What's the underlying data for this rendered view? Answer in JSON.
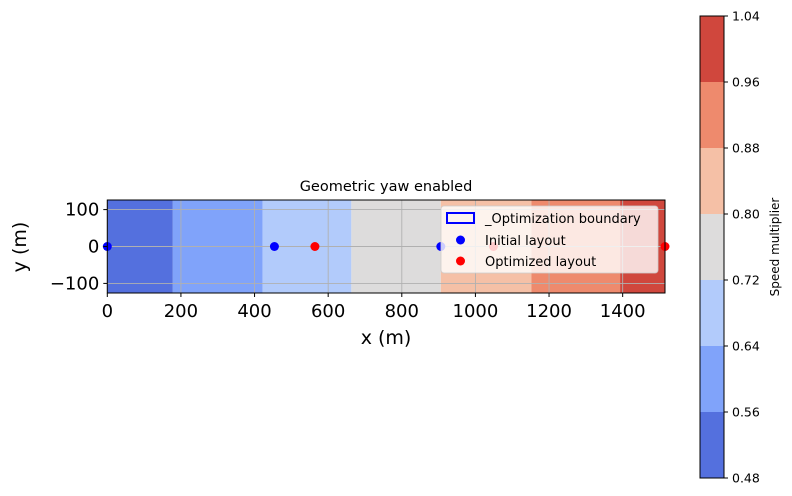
{
  "chart_data": {
    "type": "heatmap",
    "title": "Geometric yaw enabled",
    "xlabel": "x (m)",
    "ylabel": "y (m)",
    "xlim": [
      0,
      1515
    ],
    "ylim": [
      -126,
      126
    ],
    "xticks": [
      0,
      200,
      400,
      600,
      800,
      1000,
      1200,
      1400
    ],
    "yticks": [
      -100,
      0,
      100
    ],
    "ytick_labels": [
      "−100",
      "0",
      "100"
    ],
    "grid": true,
    "contour_bands": [
      {
        "x_start": 0,
        "x_end": 178,
        "level_low": 0.48,
        "level_high": 0.56
      },
      {
        "x_start": 178,
        "x_end": 422,
        "level_low": 0.56,
        "level_high": 0.64
      },
      {
        "x_start": 422,
        "x_end": 663,
        "level_low": 0.64,
        "level_high": 0.72
      },
      {
        "x_start": 663,
        "x_end": 906,
        "level_low": 0.72,
        "level_high": 0.8
      },
      {
        "x_start": 906,
        "x_end": 1152,
        "level_low": 0.8,
        "level_high": 0.88
      },
      {
        "x_start": 1152,
        "x_end": 1393,
        "level_low": 0.88,
        "level_high": 0.96
      },
      {
        "x_start": 1393,
        "x_end": 1515,
        "level_low": 0.96,
        "level_high": 1.04
      }
    ],
    "series": [
      {
        "name": "Initial layout",
        "color": "#0000ff",
        "x": [
          0,
          454,
          906
        ],
        "y": [
          0,
          0,
          0
        ]
      },
      {
        "name": "Optimized layout",
        "color": "#ff0000",
        "x": [
          564,
          1049,
          1515
        ],
        "y": [
          0,
          0,
          0
        ]
      }
    ],
    "boundary_legend": {
      "name": "_Optimization boundary",
      "color": "#0000ff"
    },
    "legend_placement": "upper-right",
    "colorbar": {
      "label": "Speed multiplier",
      "levels": [
        0.48,
        0.56,
        0.64,
        0.72,
        0.8,
        0.88,
        0.96,
        1.04
      ],
      "tick_labels": [
        "0.48",
        "0.56",
        "0.64",
        "0.72",
        "0.80",
        "0.88",
        "0.96",
        "1.04"
      ],
      "colors": [
        "#5470de",
        "#80a3fa",
        "#b2cbfb",
        "#dddcdc",
        "#f5c0a6",
        "#ee8a6d",
        "#d0473d"
      ]
    }
  }
}
